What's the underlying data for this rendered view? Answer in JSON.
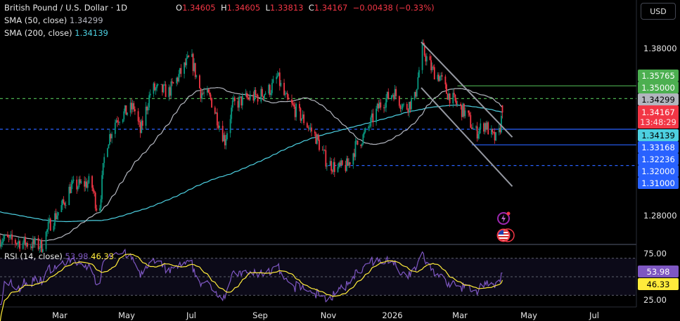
{
  "header": {
    "symbol_title": "British Pound / U.S. Dollar · 1D",
    "ohlc": {
      "o_label": "O",
      "o": "1.34605",
      "h_label": "H",
      "h": "1.34605",
      "l_label": "L",
      "l": "1.33813",
      "c_label": "C",
      "c": "1.34167",
      "change": "−0.00438 (−0.33%)"
    },
    "sma50_label": "SMA (50, close)",
    "sma50_value": "1.34299",
    "sma200_label": "SMA (200, close)",
    "sma200_value": "1.34139",
    "currency_button": "USD"
  },
  "rsi_legend": {
    "label": "RSI (14, close)",
    "rsi": "53.98",
    "ma": "46.33"
  },
  "price_axis": [
    "1.38000",
    "1.28000"
  ],
  "rsi_axis": [
    "75.00",
    "25.00"
  ],
  "price_labels": [
    {
      "text": "1.35765",
      "bg": "#4caf50",
      "fg": "#ffffff"
    },
    {
      "text": "1.35000",
      "bg": "#4caf50",
      "fg": "#ffffff"
    },
    {
      "text": "1.34299",
      "bg": "#b2b5be",
      "fg": "#000000"
    },
    {
      "text": "1.34167",
      "sub": "13:48:29",
      "bg": "#f23645",
      "fg": "#ffffff"
    },
    {
      "text": "1.34139",
      "bg": "#4dd0e1",
      "fg": "#000000"
    },
    {
      "text": "1.33168",
      "bg": "#2962ff",
      "fg": "#ffffff"
    },
    {
      "text": "1.32236",
      "bg": "#2962ff",
      "fg": "#ffffff"
    },
    {
      "text": "1.32000",
      "bg": "#2962ff",
      "fg": "#ffffff"
    },
    {
      "text": "1.31000",
      "bg": "#2962ff",
      "fg": "#ffffff"
    }
  ],
  "rsi_labels": [
    {
      "text": "53.98",
      "bg": "#7e57c2",
      "fg": "#ffffff"
    },
    {
      "text": "46.33",
      "bg": "#ffeb3b",
      "fg": "#000000"
    }
  ],
  "time_axis": [
    "Mar",
    "May",
    "Jul",
    "Sep",
    "Nov",
    "2026",
    "Mar",
    "May",
    "Jul"
  ],
  "icons": [
    "lightning-event-icon",
    "us-flag-event-icon"
  ],
  "chart_data": {
    "type": "candlestick",
    "symbol": "GBPUSD",
    "interval": "1D",
    "colors": {
      "up": "#089981",
      "down": "#f23645",
      "sma50": "#b2b5be",
      "sma200": "#4dd0e1",
      "rsi": "#7e57c2",
      "rsi_ma": "#ffeb3b"
    },
    "ylim": [
      1.25,
      1.395
    ],
    "approx_close_path": [
      [
        "2025-01-06",
        1.266
      ],
      [
        "2025-02-13",
        1.262
      ],
      [
        "2025-02-20",
        1.2745
      ],
      [
        "2025-03-05",
        1.287
      ],
      [
        "2025-03-11",
        1.297
      ],
      [
        "2025-03-30",
        1.3
      ],
      [
        "2025-04-06",
        1.28
      ],
      [
        "2025-04-12",
        1.321
      ],
      [
        "2025-04-22",
        1.338
      ],
      [
        "2025-05-08",
        1.345
      ],
      [
        "2025-05-14",
        1.33
      ],
      [
        "2025-05-24",
        1.356
      ],
      [
        "2025-06-09",
        1.354
      ],
      [
        "2025-06-25",
        1.371
      ],
      [
        "2025-06-29",
        1.375
      ],
      [
        "2025-07-08",
        1.354
      ],
      [
        "2025-07-17",
        1.35
      ],
      [
        "2025-07-30",
        1.325
      ],
      [
        "2025-08-06",
        1.346
      ],
      [
        "2025-08-18",
        1.35
      ],
      [
        "2025-08-31",
        1.352
      ],
      [
        "2025-09-10",
        1.356
      ],
      [
        "2025-09-16",
        1.363
      ],
      [
        "2025-09-23",
        1.35
      ],
      [
        "2025-10-09",
        1.338
      ],
      [
        "2025-10-21",
        1.327
      ],
      [
        "2025-10-31",
        1.312
      ],
      [
        "2025-11-10",
        1.308
      ],
      [
        "2025-11-19",
        1.31
      ],
      [
        "2025-11-26",
        1.321
      ],
      [
        "2025-12-05",
        1.329
      ],
      [
        "2025-12-18",
        1.346
      ],
      [
        "2025-12-31",
        1.354
      ],
      [
        "2026-01-10",
        1.344
      ],
      [
        "2026-01-19",
        1.35
      ],
      [
        "2026-01-26",
        1.3796
      ],
      [
        "2026-02-04",
        1.367
      ],
      [
        "2026-02-11",
        1.363
      ],
      [
        "2026-02-17",
        1.354
      ],
      [
        "2026-02-27",
        1.346
      ],
      [
        "2026-03-08",
        1.34
      ],
      [
        "2026-03-15",
        1.329
      ],
      [
        "2026-03-24",
        1.335
      ],
      [
        "2026-03-31",
        1.327
      ],
      [
        "2026-04-05",
        1.325
      ],
      [
        "2026-04-09",
        1.34167
      ]
    ],
    "horizontal_levels": [
      {
        "price": 1.35765,
        "color": "#4caf50",
        "style": "solid",
        "from": "2026-02-27"
      },
      {
        "price": 1.35,
        "color": "#4caf50",
        "style": "dashed"
      },
      {
        "price": 1.33168,
        "color": "#2962ff",
        "style": "solid",
        "from": "2026-03-31"
      },
      {
        "price": 1.33168,
        "color": "#2962ff",
        "style": "dashed",
        "to": "2026-03-31"
      },
      {
        "price": 1.32236,
        "color": "#2962ff",
        "style": "solid",
        "from": "2026-03-12"
      },
      {
        "price": 1.31,
        "color": "#2962ff",
        "style": "dashed",
        "from": "2025-11-01"
      }
    ],
    "trendlines": [
      {
        "from": [
          "2026-01-25",
          1.3838
        ],
        "to": [
          "2026-04-18",
          1.327
        ]
      },
      {
        "from": [
          "2026-01-25",
          1.3565
        ],
        "to": [
          "2026-04-18",
          1.2975
        ]
      }
    ],
    "rsi": {
      "period": 14,
      "ma_period": 14,
      "last": 53.98,
      "ma_last": 46.33,
      "bands": [
        70,
        50,
        30
      ],
      "ylim": [
        25,
        75
      ]
    },
    "x_ticks": [
      "Mar",
      "May",
      "Jul",
      "Sep",
      "Nov",
      "2026",
      "Mar",
      "May",
      "Jul"
    ]
  }
}
